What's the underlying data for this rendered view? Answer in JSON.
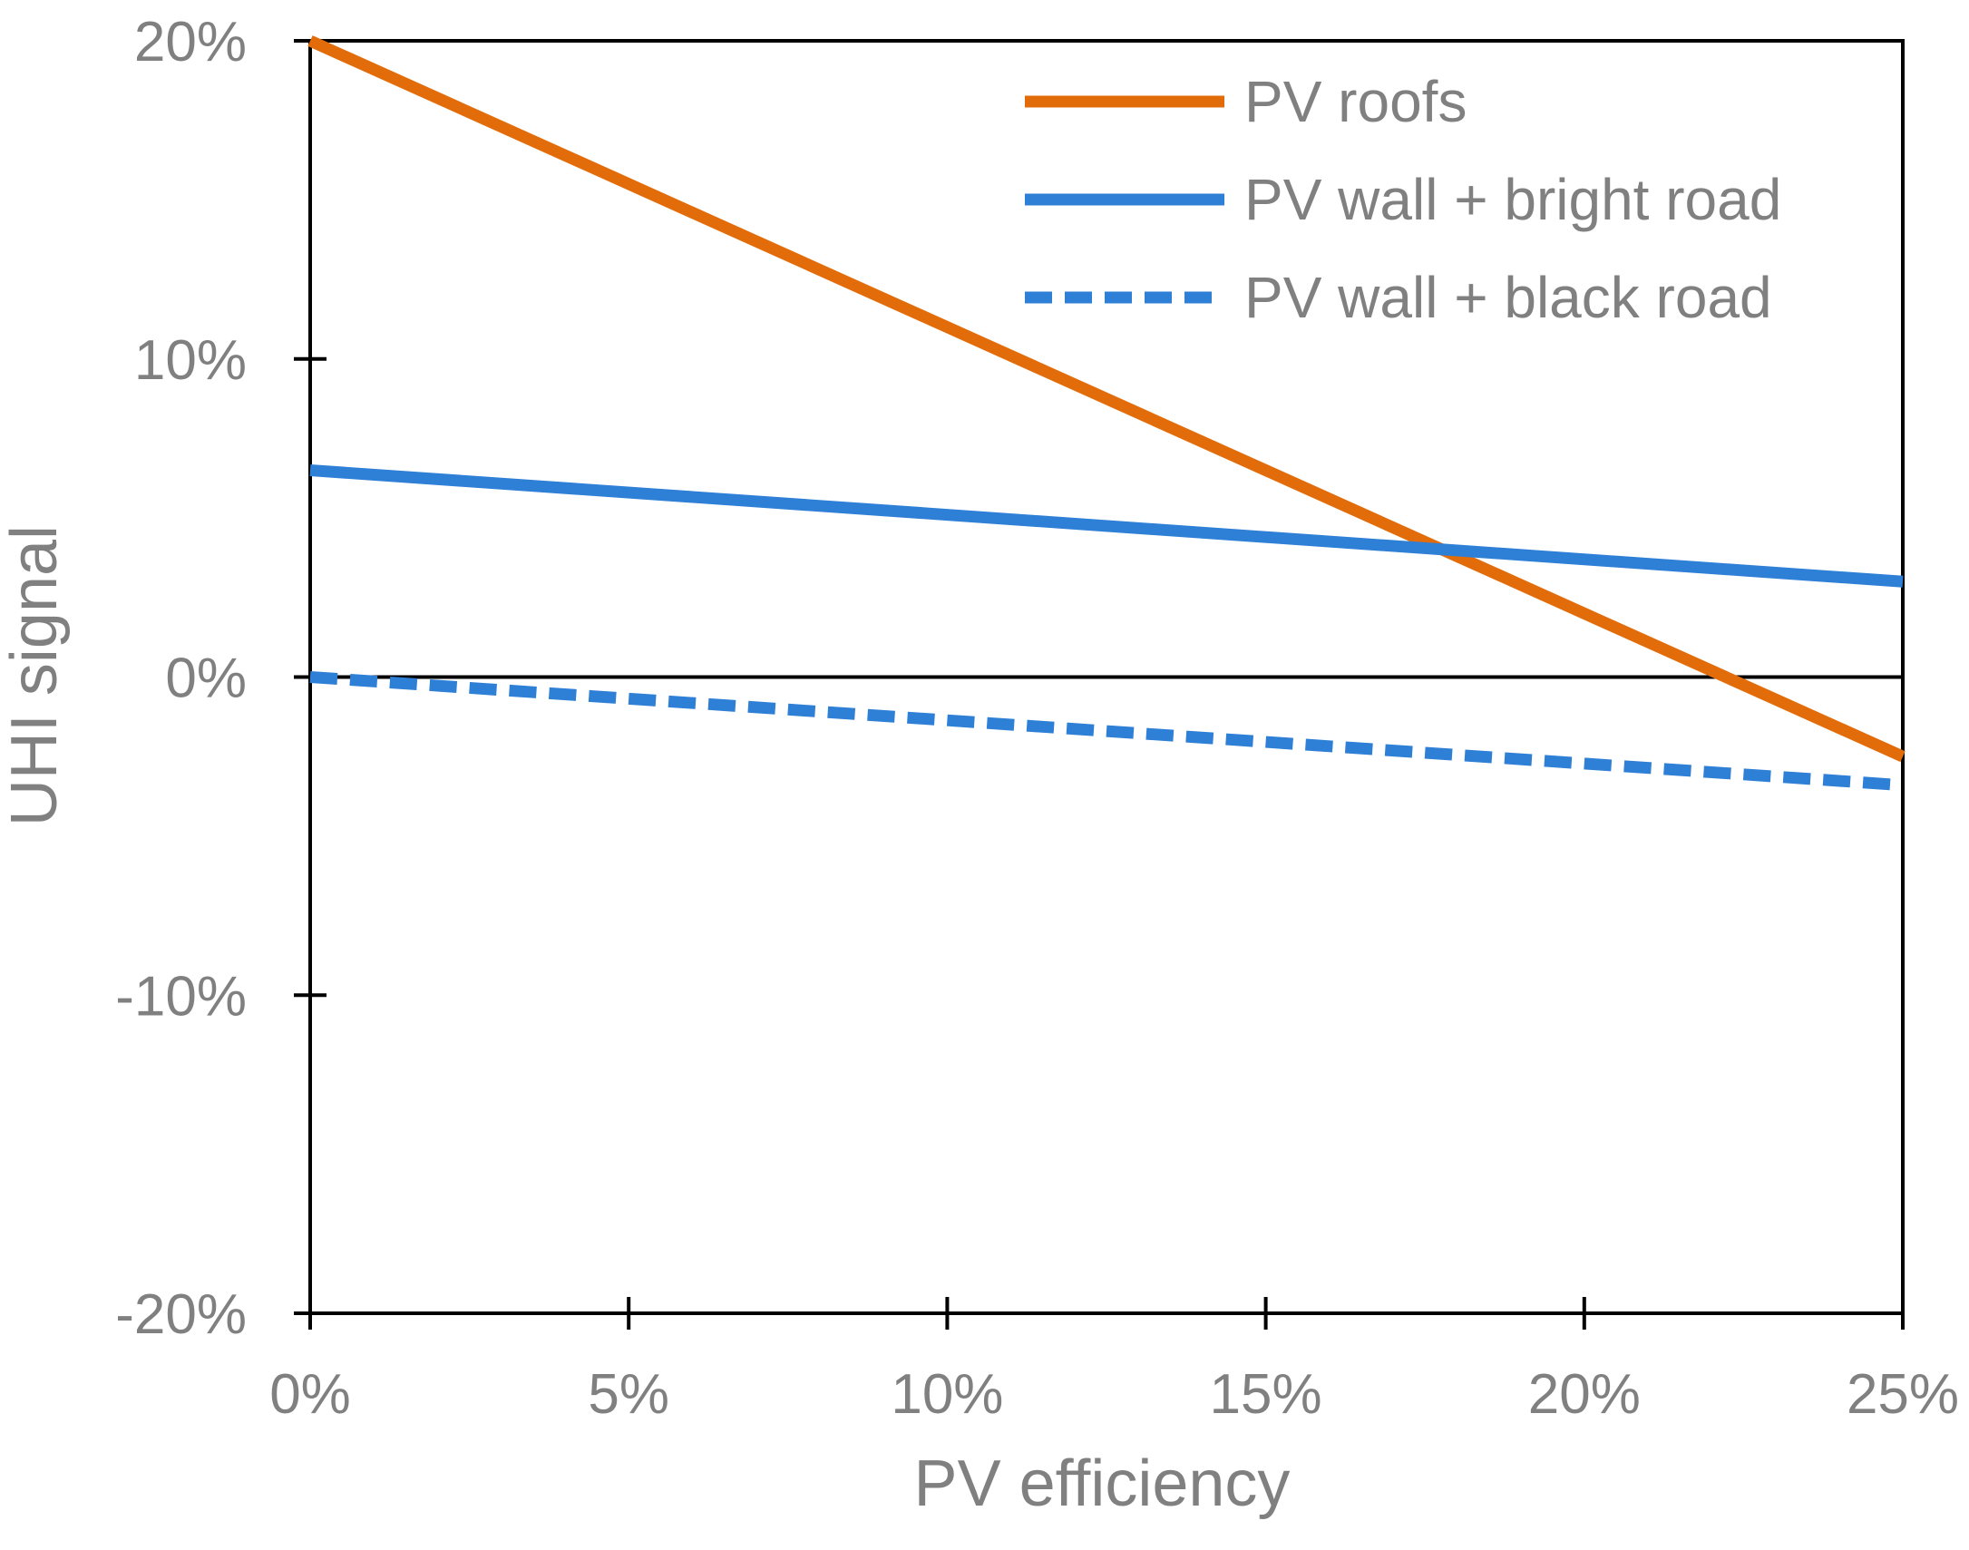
{
  "chart_data": {
    "type": "line",
    "title": "",
    "xlabel": "PV efficiency",
    "ylabel": "UHI signal",
    "x": [
      0,
      25
    ],
    "xlim": [
      0,
      25
    ],
    "ylim": [
      -20,
      20
    ],
    "xticks": [
      0,
      5,
      10,
      15,
      20,
      25
    ],
    "yticks": [
      -20,
      -10,
      0,
      10,
      20
    ],
    "xtick_labels": [
      "0%",
      "5%",
      "10%",
      "15%",
      "20%",
      "25%"
    ],
    "ytick_labels": [
      "-20%",
      "-10%",
      "0%",
      "10%",
      "20%"
    ],
    "grid": false,
    "legend_position": "top-right",
    "series": [
      {
        "name": "PV roofs",
        "color": "#E36C0A",
        "style": "solid",
        "values": [
          20.0,
          -2.5
        ]
      },
      {
        "name": "PV wall + bright road",
        "color": "#2E7FD6",
        "style": "solid",
        "values": [
          6.5,
          3.0
        ]
      },
      {
        "name": "PV wall + black road",
        "color": "#2E7FD6",
        "style": "dashed",
        "values": [
          0.0,
          -3.4
        ]
      }
    ]
  }
}
